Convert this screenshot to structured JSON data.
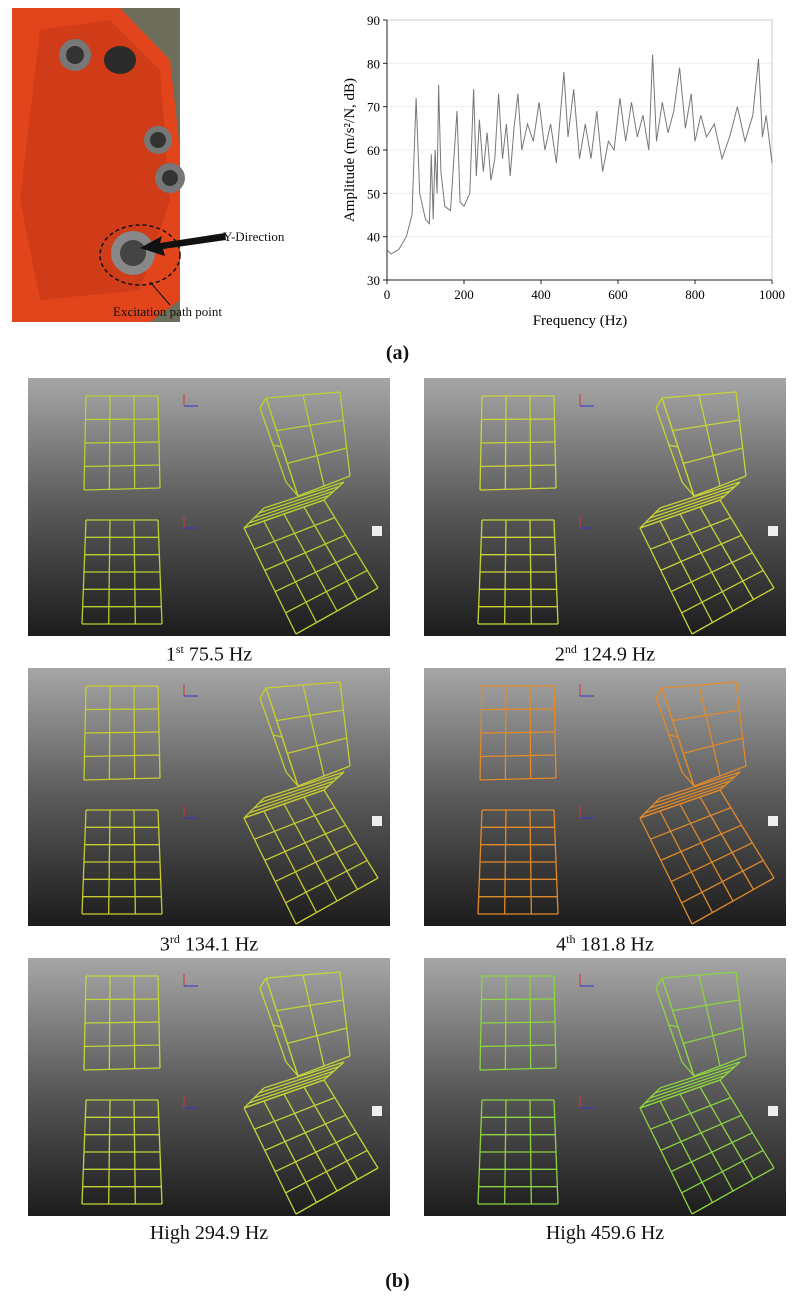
{
  "photo": {
    "arrow_label": "Y-Direction",
    "point_label": "Excitation path point"
  },
  "chart_data": {
    "type": "line",
    "xlabel": "Frequency (Hz)",
    "ylabel": "Amplitude (m/s²/N, dB)",
    "xlim": [
      0,
      1000
    ],
    "ylim": [
      30,
      90
    ],
    "xticks": [
      0,
      200,
      400,
      600,
      800,
      1000
    ],
    "yticks": [
      30,
      40,
      50,
      60,
      70,
      80,
      90
    ],
    "grid": true,
    "series": [
      {
        "color": "#777777",
        "x": [
          0,
          10,
          30,
          50,
          65,
          75.5,
          85,
          100,
          110,
          115,
          120,
          125,
          130,
          134,
          140,
          150,
          165,
          181.8,
          190,
          200,
          215,
          225,
          232,
          240,
          250,
          260,
          270,
          280,
          290,
          300,
          310,
          320,
          330,
          340,
          350,
          365,
          380,
          395,
          410,
          425,
          440,
          459.6,
          470,
          485,
          500,
          515,
          530,
          545,
          560,
          575,
          590,
          605,
          620,
          635,
          650,
          665,
          680,
          690,
          700,
          715,
          730,
          745,
          760,
          775,
          790,
          800,
          815,
          830,
          850,
          870,
          890,
          910,
          930,
          950,
          965,
          975,
          985,
          1000
        ],
        "values": [
          37,
          36,
          37,
          40,
          45,
          72,
          50,
          44,
          43,
          59,
          44,
          60,
          50,
          75,
          55,
          47,
          46,
          69,
          48,
          47,
          50,
          74,
          54,
          67,
          55,
          64,
          53,
          58,
          73,
          58,
          66,
          54,
          65,
          73,
          60,
          66,
          62,
          71,
          60,
          66,
          57,
          78,
          63,
          74,
          58,
          66,
          58,
          69,
          55,
          62,
          60,
          72,
          62,
          71,
          63,
          68,
          60,
          82,
          62,
          71,
          64,
          69,
          79,
          65,
          73,
          62,
          68,
          63,
          66,
          58,
          63,
          70,
          62,
          68,
          81,
          63,
          68,
          57
        ]
      }
    ]
  },
  "caption_a": "(a)",
  "modes": [
    {
      "ordinal": "1",
      "suffix": "st",
      "frequency": "75.5 Hz"
    },
    {
      "ordinal": "2",
      "suffix": "nd",
      "frequency": "124.9 Hz"
    },
    {
      "ordinal": "3",
      "suffix": "rd",
      "frequency": "134.1 Hz"
    },
    {
      "ordinal": "4",
      "suffix": "th",
      "frequency": "181.8 Hz"
    },
    {
      "ordinal": "High",
      "frequency": "294.9 Hz"
    },
    {
      "ordinal": "High",
      "frequency": "459.6 Hz"
    }
  ],
  "caption_b": "(b)"
}
